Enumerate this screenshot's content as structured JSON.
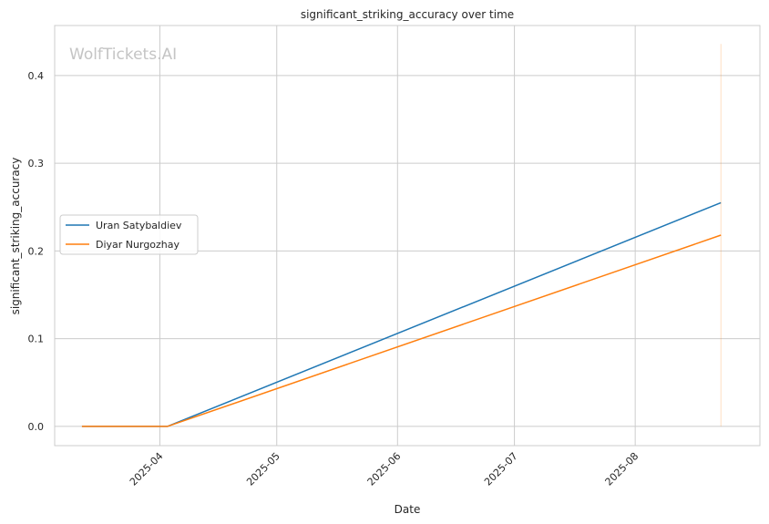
{
  "chart_data": {
    "type": "line",
    "title": "significant_striking_accuracy over time",
    "xlabel": "Date",
    "ylabel": "significant_striking_accuracy",
    "watermark": "WolfTickets.AI",
    "x_ticks": [
      "2025-04-01",
      "2025-05-01",
      "2025-06-01",
      "2025-07-01",
      "2025-08-01"
    ],
    "x_tick_labels": [
      "2025-04",
      "2025-05",
      "2025-06",
      "2025-07",
      "2025-08"
    ],
    "y_ticks": [
      0.0,
      0.1,
      0.2,
      0.3,
      0.4
    ],
    "y_tick_labels": [
      "0.0",
      "0.1",
      "0.2",
      "0.3",
      "0.4"
    ],
    "xlim": [
      "2025-03-05",
      "2025-09-02"
    ],
    "ylim": [
      -0.022,
      0.457
    ],
    "grid": true,
    "legend_position": "center-left",
    "series": [
      {
        "name": "Uran Satybaldiev",
        "color": "#1f77b4",
        "x": [
          "2025-03-12",
          "2025-04-03",
          "2025-08-23"
        ],
        "y": [
          0.0,
          0.0,
          0.255
        ]
      },
      {
        "name": "Diyar Nurgozhay",
        "color": "#ff7f0e",
        "x": [
          "2025-03-12",
          "2025-04-03",
          "2025-08-23"
        ],
        "y": [
          0.0,
          0.0,
          0.218
        ]
      }
    ],
    "vertical_marker": {
      "x": "2025-08-23",
      "y_range": [
        0.0,
        0.436
      ],
      "color": "#ff7f0e"
    }
  }
}
